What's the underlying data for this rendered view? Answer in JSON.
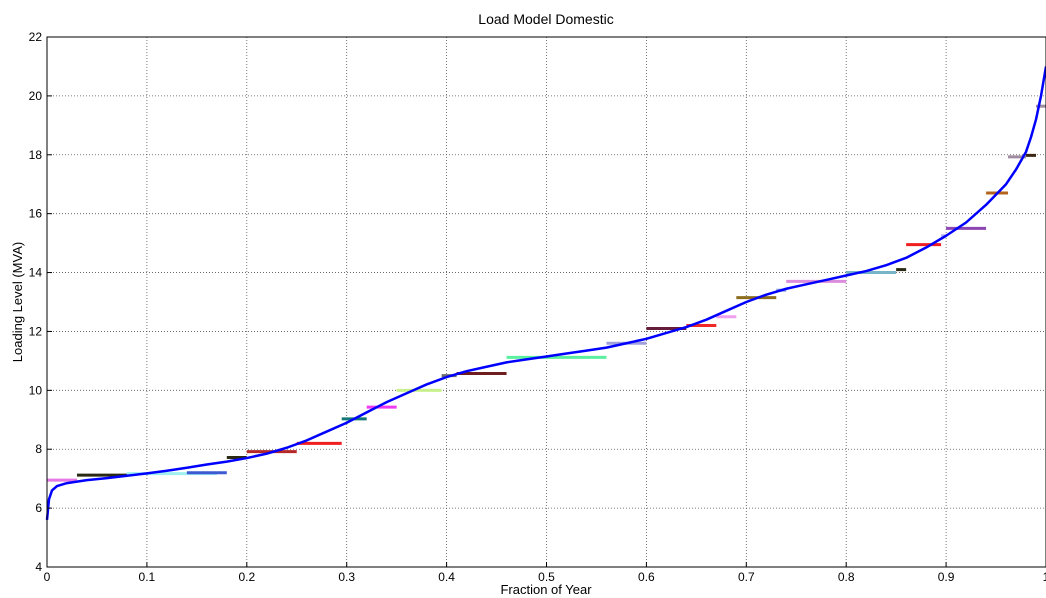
{
  "chart_data": {
    "type": "line",
    "title": "Load Model Domestic",
    "xlabel": "Fraction of Year",
    "ylabel": "Loading Level (MVA)",
    "xlim": [
      0,
      1
    ],
    "ylim": [
      4,
      22
    ],
    "grid": true,
    "x_ticks": [
      "0",
      "0.1",
      "0.2",
      "0.3",
      "0.4",
      "0.5",
      "0.6",
      "0.7",
      "0.8",
      "0.9",
      "1"
    ],
    "y_ticks": [
      "4",
      "6",
      "8",
      "10",
      "12",
      "14",
      "16",
      "18",
      "20",
      "22"
    ],
    "series": [
      {
        "color": "#0000ff",
        "x": [
          0,
          0.002,
          0.005,
          0.01,
          0.02,
          0.04,
          0.06,
          0.08,
          0.1,
          0.12,
          0.14,
          0.16,
          0.18,
          0.2,
          0.22,
          0.24,
          0.26,
          0.28,
          0.3,
          0.32,
          0.34,
          0.36,
          0.38,
          0.4,
          0.42,
          0.44,
          0.46,
          0.48,
          0.5,
          0.52,
          0.54,
          0.56,
          0.58,
          0.6,
          0.62,
          0.64,
          0.66,
          0.68,
          0.7,
          0.72,
          0.74,
          0.76,
          0.78,
          0.8,
          0.82,
          0.84,
          0.86,
          0.88,
          0.9,
          0.92,
          0.94,
          0.96,
          0.97,
          0.98,
          0.985,
          0.99,
          0.995,
          1.0
        ],
        "y": [
          5.6,
          6.3,
          6.6,
          6.75,
          6.85,
          6.95,
          7.02,
          7.1,
          7.18,
          7.27,
          7.37,
          7.48,
          7.58,
          7.7,
          7.85,
          8.05,
          8.3,
          8.6,
          8.9,
          9.25,
          9.6,
          9.9,
          10.2,
          10.45,
          10.65,
          10.8,
          10.95,
          11.05,
          11.15,
          11.25,
          11.35,
          11.45,
          11.6,
          11.75,
          11.95,
          12.15,
          12.4,
          12.7,
          13.0,
          13.25,
          13.45,
          13.6,
          13.75,
          13.9,
          14.05,
          14.25,
          14.5,
          14.85,
          15.25,
          15.7,
          16.3,
          17.0,
          17.5,
          18.1,
          18.6,
          19.2,
          20.0,
          21.0
        ]
      }
    ],
    "segments": [
      {
        "x0": 0.0,
        "x1": 0.03,
        "y": 6.95,
        "color": "#e678e6"
      },
      {
        "x0": 0.03,
        "x1": 0.08,
        "y": 7.12,
        "color": "#2a2a14"
      },
      {
        "x0": 0.08,
        "x1": 0.17,
        "y": 7.17,
        "color": "#a0f0f0"
      },
      {
        "x0": 0.14,
        "x1": 0.18,
        "y": 7.2,
        "color": "#3c5ad2"
      },
      {
        "x0": 0.18,
        "x1": 0.2,
        "y": 7.72,
        "color": "#2a2a14"
      },
      {
        "x0": 0.2,
        "x1": 0.25,
        "y": 7.92,
        "color": "#b42828"
      },
      {
        "x0": 0.25,
        "x1": 0.295,
        "y": 8.2,
        "color": "#f01e1e"
      },
      {
        "x0": 0.295,
        "x1": 0.32,
        "y": 9.03,
        "color": "#147878"
      },
      {
        "x0": 0.32,
        "x1": 0.35,
        "y": 9.43,
        "color": "#f03cf0"
      },
      {
        "x0": 0.35,
        "x1": 0.395,
        "y": 10.0,
        "color": "#c8f08c"
      },
      {
        "x0": 0.395,
        "x1": 0.41,
        "y": 10.5,
        "color": "#6e6e6e"
      },
      {
        "x0": 0.41,
        "x1": 0.46,
        "y": 10.57,
        "color": "#6e1e1e"
      },
      {
        "x0": 0.46,
        "x1": 0.56,
        "y": 11.12,
        "color": "#5af0a0"
      },
      {
        "x0": 0.56,
        "x1": 0.6,
        "y": 11.6,
        "color": "#a0a0dc"
      },
      {
        "x0": 0.6,
        "x1": 0.64,
        "y": 12.1,
        "color": "#641e3c"
      },
      {
        "x0": 0.64,
        "x1": 0.67,
        "y": 12.2,
        "color": "#f02828"
      },
      {
        "x0": 0.67,
        "x1": 0.69,
        "y": 12.5,
        "color": "#f0a0f0"
      },
      {
        "x0": 0.69,
        "x1": 0.73,
        "y": 13.15,
        "color": "#8c6e1e"
      },
      {
        "x0": 0.73,
        "x1": 0.74,
        "y": 13.4,
        "color": "#8ca0dc"
      },
      {
        "x0": 0.74,
        "x1": 0.8,
        "y": 13.7,
        "color": "#dc8cdc"
      },
      {
        "x0": 0.8,
        "x1": 0.85,
        "y": 14.0,
        "color": "#78b4c8"
      },
      {
        "x0": 0.85,
        "x1": 0.86,
        "y": 14.1,
        "color": "#2a2a14"
      },
      {
        "x0": 0.86,
        "x1": 0.895,
        "y": 14.95,
        "color": "#f01e1e"
      },
      {
        "x0": 0.895,
        "x1": 0.9,
        "y": 15.25,
        "color": "#b4b4f0"
      },
      {
        "x0": 0.9,
        "x1": 0.94,
        "y": 15.5,
        "color": "#8c46b4"
      },
      {
        "x0": 0.94,
        "x1": 0.962,
        "y": 16.7,
        "color": "#b4641e"
      },
      {
        "x0": 0.962,
        "x1": 0.98,
        "y": 17.93,
        "color": "#a08ca0"
      },
      {
        "x0": 0.98,
        "x1": 0.99,
        "y": 17.98,
        "color": "#3c2814"
      },
      {
        "x0": 0.99,
        "x1": 1.0,
        "y": 19.65,
        "color": "#a08ca0"
      }
    ]
  }
}
